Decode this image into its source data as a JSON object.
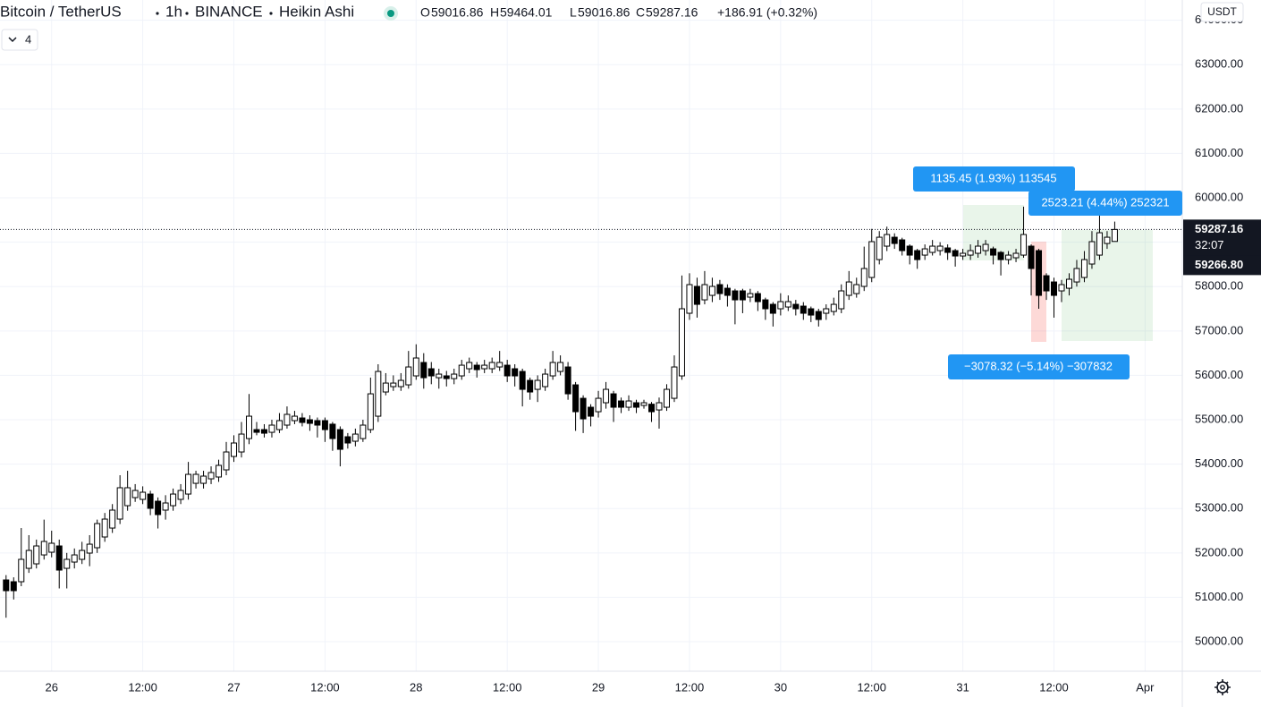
{
  "chart_data": {
    "type": "candlestick",
    "symbol": "Bitcoin / TetherUS",
    "interval": "1h",
    "exchange": "BINANCE",
    "chart_style": "Heikin Ashi",
    "ohlc_letters": [
      "O",
      "H",
      "L",
      "C"
    ],
    "change": "+186.91 (+0.32%)",
    "currency": "USDT",
    "indicator_count": 4,
    "countdown": "32:07",
    "secondary_price": "59266.80",
    "up_color": "#ffffff",
    "down_color": "#000000",
    "grid": true,
    "xlim": [
      -0.8,
      154.9
    ],
    "ylim": [
      49335,
      64456
    ],
    "xticks": [
      {
        "value": 6,
        "label": "26"
      },
      {
        "value": 18,
        "label": "12:00"
      },
      {
        "value": 30,
        "label": "27"
      },
      {
        "value": 42,
        "label": "12:00"
      },
      {
        "value": 54,
        "label": "28"
      },
      {
        "value": 66,
        "label": "12:00"
      },
      {
        "value": 78,
        "label": "29"
      },
      {
        "value": 90,
        "label": "12:00"
      },
      {
        "value": 102,
        "label": "30"
      },
      {
        "value": 114,
        "label": "12:00"
      },
      {
        "value": 126,
        "label": "31"
      },
      {
        "value": 138,
        "label": "12:00"
      },
      {
        "value": 150,
        "label": "Apr"
      }
    ],
    "yticks": [
      {
        "value": 50000,
        "label": "50000.00"
      },
      {
        "value": 51000,
        "label": "51000.00"
      },
      {
        "value": 52000,
        "label": "52000.00"
      },
      {
        "value": 53000,
        "label": "53000.00"
      },
      {
        "value": 54000,
        "label": "54000.00"
      },
      {
        "value": 55000,
        "label": "55000.00"
      },
      {
        "value": 56000,
        "label": "56000.00"
      },
      {
        "value": 57000,
        "label": "57000.00"
      },
      {
        "value": 58000,
        "label": "58000.00"
      },
      {
        "value": 59000,
        "label": "59000.00"
      },
      {
        "value": 60000,
        "label": "60000.00"
      },
      {
        "value": 61000,
        "label": "61000.00"
      },
      {
        "value": 62000,
        "label": "62000.00"
      },
      {
        "value": 63000,
        "label": "63000.00"
      },
      {
        "value": 64000,
        "label": "64000.00"
      }
    ],
    "open": [
      51391,
      51351,
      51351,
      51653,
      51754,
      51955,
      52016,
      52157,
      51653,
      51794,
      51855,
      51996,
      52117,
      52359,
      52560,
      52762,
      53064,
      53246,
      53206,
      53326,
      53165,
      52964,
      53064,
      53206,
      53326,
      53568,
      53568,
      53669,
      53710,
      53871,
      54173,
      54274,
      54576,
      54778,
      54778,
      54717,
      54778,
      54879,
      54980,
      55040,
      55000,
      54980,
      54980,
      54900,
      54778,
      54617,
      54516,
      54576,
      54778,
      55080,
      55625,
      55746,
      55746,
      55786,
      55988,
      56290,
      56149,
      55947,
      55988,
      55927,
      55988,
      56149,
      56229,
      56149,
      56149,
      56189,
      56229,
      56149,
      56088,
      55887,
      55685,
      55746,
      55988,
      56088,
      56189,
      55786,
      55483,
      55282,
      55181,
      55383,
      55584,
      55423,
      55282,
      55383,
      55322,
      55350,
      55221,
      55282,
      55483,
      55988,
      57399,
      58004,
      57701,
      57802,
      58044,
      57963,
      57903,
      57903,
      57762,
      57842,
      57701,
      57600,
      57500,
      57540,
      57600,
      57560,
      57500,
      57439,
      57399,
      57439,
      57500,
      57802,
      57842,
      58004,
      58205,
      58608,
      58911,
      59112,
      59052,
      58911,
      58810,
      58709,
      58770,
      58810,
      58871,
      58810,
      58689,
      58709,
      58750,
      58810,
      58850,
      58770,
      58608,
      58649,
      58709,
      58911,
      58810,
      58245,
      58104,
      57903,
      57963,
      58104,
      58205,
      58508,
      58709,
      58971,
      59016.86
    ],
    "high": [
      51500,
      51450,
      52560,
      52400,
      52300,
      52750,
      52500,
      52300,
      52000,
      52100,
      52250,
      52400,
      52750,
      52900,
      53100,
      53750,
      53850,
      53550,
      53500,
      53400,
      53250,
      53300,
      53450,
      53550,
      54050,
      53850,
      53850,
      53950,
      54100,
      54500,
      54650,
      54950,
      55580,
      54950,
      54900,
      55000,
      55150,
      55300,
      55200,
      55150,
      55100,
      55050,
      55050,
      54950,
      54850,
      54700,
      54800,
      55000,
      55950,
      56250,
      56050,
      56000,
      56050,
      56550,
      56700,
      56500,
      56300,
      56150,
      56100,
      56150,
      56350,
      56400,
      56300,
      56350,
      56400,
      56550,
      56350,
      56250,
      56150,
      55950,
      56000,
      56150,
      56550,
      56450,
      56300,
      55850,
      55550,
      55350,
      55650,
      55850,
      55650,
      55500,
      55550,
      55450,
      55450,
      55400,
      55500,
      55800,
      56450,
      58250,
      58300,
      58200,
      58350,
      58200,
      58150,
      58050,
      57950,
      57950,
      57950,
      57900,
      57750,
      57650,
      57850,
      57800,
      57700,
      57650,
      57550,
      57500,
      57600,
      57750,
      58050,
      58350,
      58200,
      58900,
      59300,
      59250,
      59350,
      59200,
      59100,
      58950,
      58850,
      58950,
      59050,
      59000,
      58950,
      58850,
      58850,
      58950,
      59050,
      59050,
      58900,
      58800,
      58800,
      58850,
      59800,
      58950,
      58850,
      58300,
      58200,
      58150,
      58300,
      58600,
      58800,
      59250,
      59650,
      59250,
      59464.01
    ],
    "low": [
      50540,
      50950,
      51250,
      51550,
      51650,
      51850,
      51900,
      51200,
      51200,
      51650,
      51750,
      51700,
      52000,
      52250,
      52450,
      52650,
      52950,
      53150,
      53100,
      52850,
      52550,
      52750,
      52950,
      53100,
      53200,
      53450,
      53450,
      53550,
      53600,
      53750,
      54050,
      54150,
      54450,
      54650,
      54600,
      54600,
      54700,
      54800,
      54900,
      54850,
      54750,
      54600,
      54500,
      54300,
      53950,
      54350,
      54400,
      54500,
      54700,
      54950,
      55550,
      55650,
      55650,
      55700,
      55900,
      55700,
      55800,
      55700,
      55750,
      55800,
      55900,
      56050,
      55950,
      56050,
      56050,
      56100,
      55850,
      55750,
      55300,
      55450,
      55400,
      55650,
      55900,
      56000,
      55450,
      54750,
      54700,
      54850,
      55050,
      55250,
      54950,
      55150,
      55200,
      55150,
      55250,
      54950,
      54800,
      55200,
      55400,
      55900,
      57250,
      57300,
      57600,
      57650,
      57700,
      57550,
      57150,
      57400,
      57650,
      57450,
      57250,
      57100,
      57350,
      57450,
      57350,
      57250,
      57200,
      57100,
      57250,
      57350,
      57400,
      57700,
      57750,
      57900,
      58100,
      58500,
      58800,
      58850,
      58700,
      58500,
      58400,
      58600,
      58700,
      58700,
      58600,
      58450,
      58600,
      58600,
      58650,
      58700,
      58500,
      58250,
      58500,
      58550,
      58650,
      57800,
      57500,
      57700,
      57300,
      57650,
      57800,
      58000,
      58100,
      58400,
      58600,
      58850,
      59016.86
    ],
    "close": [
      51149,
      51149,
      51855,
      52056,
      52157,
      52258,
      52218,
      51613,
      51855,
      51955,
      52056,
      52197,
      52661,
      52762,
      52964,
      53468,
      53468,
      53407,
      53367,
      53004,
      52863,
      53125,
      53326,
      53407,
      53770,
      53770,
      53730,
      53810,
      53972,
      54274,
      54476,
      54677,
      55080,
      54717,
      54697,
      54879,
      54980,
      55121,
      55080,
      54939,
      54919,
      54879,
      54778,
      54576,
      54334,
      54476,
      54677,
      54879,
      55584,
      56088,
      55826,
      55826,
      55887,
      56189,
      56391,
      55947,
      55988,
      56028,
      55927,
      56028,
      56229,
      56290,
      56129,
      56229,
      56290,
      56290,
      55988,
      55988,
      55685,
      55625,
      55887,
      56028,
      56290,
      56290,
      55584,
      55181,
      55020,
      55080,
      55483,
      55685,
      55282,
      55282,
      55423,
      55282,
      55383,
      55181,
      55383,
      55685,
      56189,
      57500,
      58044,
      57600,
      58044,
      58004,
      57842,
      57802,
      57701,
      57701,
      57842,
      57661,
      57500,
      57399,
      57661,
      57661,
      57500,
      57399,
      57358,
      57258,
      57500,
      57600,
      57903,
      58104,
      58044,
      58407,
      59012,
      59112,
      59173,
      58971,
      58810,
      58709,
      58608,
      58850,
      58911,
      58911,
      58770,
      58689,
      58750,
      58810,
      58911,
      58951,
      58709,
      58608,
      58709,
      58750,
      59173,
      58407,
      57802,
      57903,
      57802,
      58044,
      58165,
      58407,
      58608,
      59012,
      59213,
      59112,
      59287.16
    ],
    "annotations": [
      "1135.45 (1.93%) 113545",
      "2523.21 (4.44%) 252321",
      "−3078.32 (−5.14%) −307832"
    ]
  }
}
